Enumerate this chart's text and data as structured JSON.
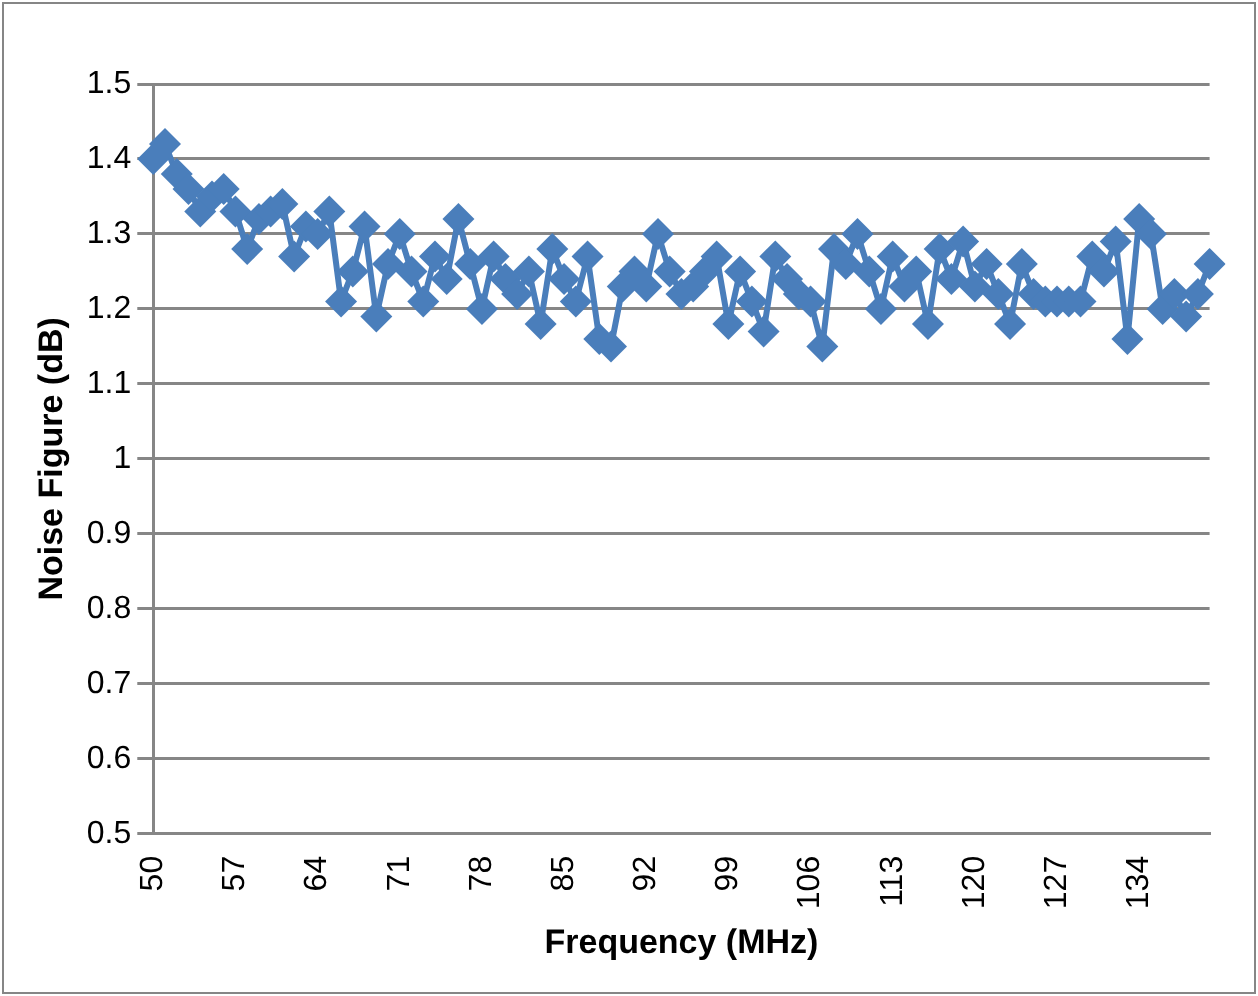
{
  "chart_data": {
    "type": "line",
    "xlabel": "Frequency (MHz)",
    "ylabel": "Noise Figure (dB)",
    "categories": [
      "50",
      null,
      null,
      null,
      null,
      null,
      null,
      "57",
      null,
      null,
      null,
      null,
      null,
      null,
      "64",
      null,
      null,
      null,
      null,
      null,
      null,
      "71",
      null,
      null,
      null,
      null,
      null,
      null,
      "78",
      null,
      null,
      null,
      null,
      null,
      null,
      "85",
      null,
      null,
      null,
      null,
      null,
      null,
      "92",
      null,
      null,
      null,
      null,
      null,
      null,
      "99",
      null,
      null,
      null,
      null,
      null,
      null,
      "106",
      null,
      null,
      null,
      null,
      null,
      null,
      "113",
      null,
      null,
      null,
      null,
      null,
      null,
      "120",
      null,
      null,
      null,
      null,
      null,
      null,
      "127",
      null,
      null,
      null,
      null,
      null,
      null,
      "134",
      null,
      null,
      null,
      null,
      null,
      null
    ],
    "series": [
      {
        "color": "#4a7ebb",
        "values": [
          1.4,
          1.42,
          1.38,
          1.36,
          1.33,
          1.35,
          1.36,
          1.33,
          1.28,
          1.32,
          1.33,
          1.34,
          1.27,
          1.31,
          1.3,
          1.33,
          1.21,
          1.25,
          1.31,
          1.19,
          1.26,
          1.3,
          1.25,
          1.21,
          1.27,
          1.24,
          1.32,
          1.26,
          1.2,
          1.27,
          1.24,
          1.22,
          1.25,
          1.18,
          1.28,
          1.24,
          1.21,
          1.27,
          1.16,
          1.15,
          1.23,
          1.25,
          1.23,
          1.3,
          1.25,
          1.22,
          1.23,
          1.25,
          1.27,
          1.18,
          1.25,
          1.21,
          1.17,
          1.27,
          1.24,
          1.22,
          1.21,
          1.15,
          1.28,
          1.26,
          1.3,
          1.25,
          1.2,
          1.27,
          1.23,
          1.25,
          1.18,
          1.28,
          1.24,
          1.29,
          1.23,
          1.26,
          1.22,
          1.18,
          1.26,
          1.22,
          1.21,
          1.21,
          1.21,
          1.21,
          1.27,
          1.25,
          1.29,
          1.16,
          1.32,
          1.3,
          1.2,
          1.22,
          1.19,
          1.22,
          1.26
        ]
      }
    ],
    "ylim": [
      0.5,
      1.5
    ],
    "yticks": [
      0.5,
      0.6,
      0.7,
      0.8,
      0.9,
      1,
      1.1,
      1.2,
      1.3,
      1.4,
      1.5
    ],
    "grid": "y",
    "legend": false,
    "marker": "diamond",
    "line_style": "solid"
  }
}
